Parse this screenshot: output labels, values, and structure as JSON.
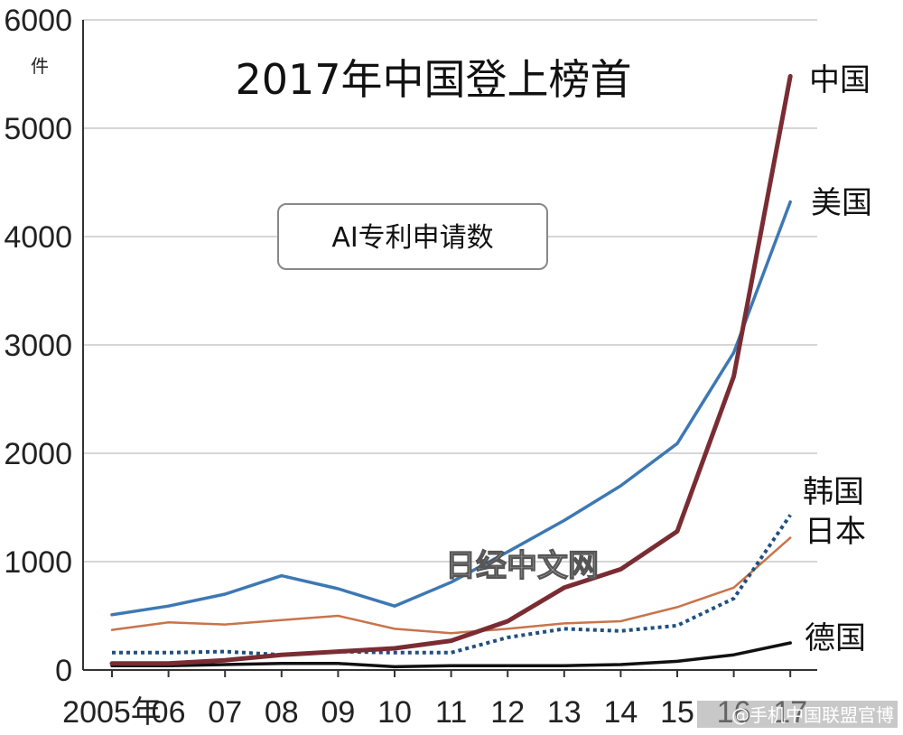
{
  "chart_data": {
    "type": "line",
    "title": "2017年中国登上榜首",
    "subtitle": "AI专利申请数",
    "y_unit": "件",
    "x": [
      "2005年",
      "06",
      "07",
      "08",
      "09",
      "10",
      "11",
      "12",
      "13",
      "14",
      "15",
      "16",
      "17"
    ],
    "y_ticks": [
      "0",
      "1000",
      "2000",
      "3000",
      "4000",
      "5000",
      "6000"
    ],
    "ylim": [
      0,
      6000
    ],
    "grid": true,
    "series": [
      {
        "name": "美国",
        "color": "#3d78b4",
        "style": "solid",
        "values": [
          510,
          590,
          700,
          870,
          750,
          590,
          810,
          1090,
          1380,
          1700,
          2090,
          2930,
          4320
        ]
      },
      {
        "name": "中国",
        "color": "#7a2c33",
        "style": "solid",
        "values": [
          60,
          60,
          90,
          140,
          170,
          200,
          270,
          450,
          760,
          930,
          1280,
          2710,
          5480
        ]
      },
      {
        "name": "韩国",
        "color": "#21507f",
        "style": "dotted",
        "values": [
          160,
          160,
          170,
          140,
          170,
          160,
          160,
          300,
          380,
          360,
          410,
          660,
          1430
        ]
      },
      {
        "name": "日本",
        "color": "#c8744c",
        "style": "solid",
        "values": [
          370,
          440,
          420,
          460,
          500,
          380,
          340,
          380,
          430,
          450,
          580,
          760,
          1220
        ]
      },
      {
        "name": "德国",
        "color": "#111111",
        "style": "solid",
        "values": [
          40,
          40,
          50,
          60,
          60,
          30,
          40,
          40,
          40,
          50,
          80,
          140,
          250
        ]
      }
    ]
  },
  "watermark": "日经中文网",
  "credit": "@手机中国联盟官博"
}
